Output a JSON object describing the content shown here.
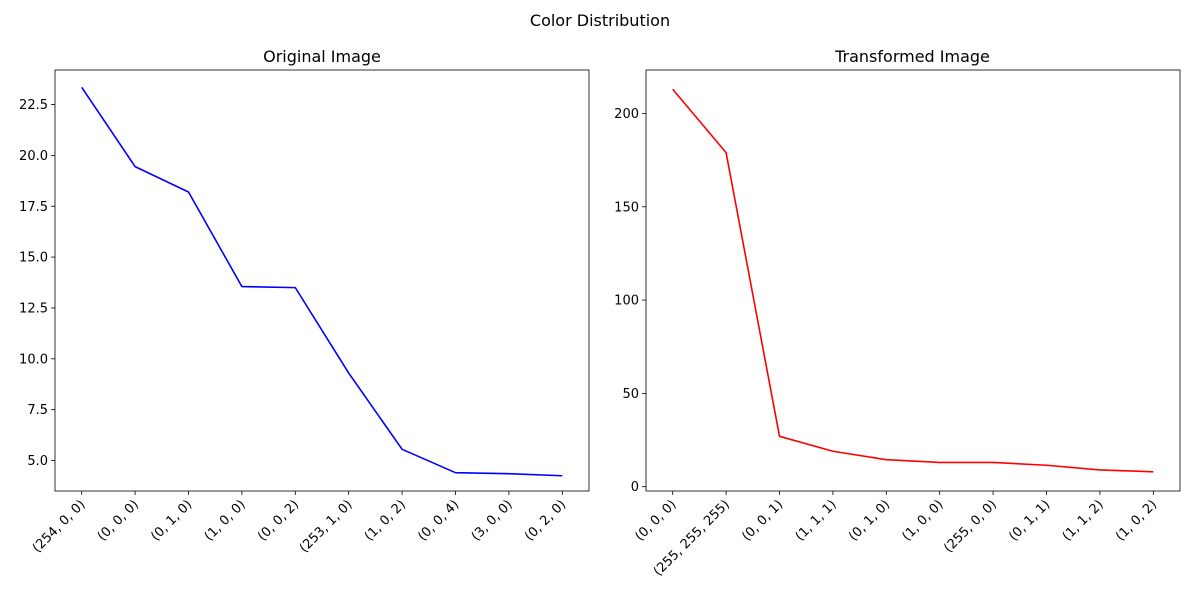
{
  "figure": {
    "suptitle": "Color Distribution"
  },
  "chart_data": [
    {
      "type": "line",
      "title": "Original Image",
      "categories": [
        "(254, 0, 0)",
        "(0, 0, 0)",
        "(0, 1, 0)",
        "(1, 0, 0)",
        "(0, 0, 2)",
        "(253, 1, 0)",
        "(1, 0, 2)",
        "(0, 0, 4)",
        "(3, 0, 0)",
        "(0, 2, 0)"
      ],
      "series": [
        {
          "color": "#0000ff",
          "values": [
            23.35,
            19.45,
            18.2,
            13.55,
            13.5,
            9.3,
            5.55,
            4.4,
            4.35,
            4.25
          ]
        }
      ],
      "ylim": [
        3.5,
        24.2
      ],
      "yticks": [
        5.0,
        7.5,
        10.0,
        12.5,
        15.0,
        17.5,
        20.0,
        22.5
      ],
      "ytick_labels": [
        "5.0",
        "7.5",
        "10.0",
        "12.5",
        "15.0",
        "17.5",
        "20.0",
        "22.5"
      ],
      "xlabel": "",
      "ylabel": "",
      "grid": false
    },
    {
      "type": "line",
      "title": "Transformed Image",
      "categories": [
        "(0, 0, 0)",
        "(255, 255, 255)",
        "(0, 0, 1)",
        "(1, 1, 1)",
        "(0, 1, 0)",
        "(1, 0, 0)",
        "(255, 0, 0)",
        "(0, 1, 1)",
        "(1, 1, 2)",
        "(1, 0, 2)"
      ],
      "series": [
        {
          "color": "#ff0000",
          "values": [
            213,
            179,
            27,
            19,
            14.5,
            13,
            13,
            11.5,
            9,
            8
          ]
        }
      ],
      "ylim": [
        -2.3,
        223.3
      ],
      "yticks": [
        0,
        50,
        100,
        150,
        200
      ],
      "ytick_labels": [
        "0",
        "50",
        "100",
        "150",
        "200"
      ],
      "xlabel": "",
      "ylabel": "",
      "grid": false
    }
  ]
}
